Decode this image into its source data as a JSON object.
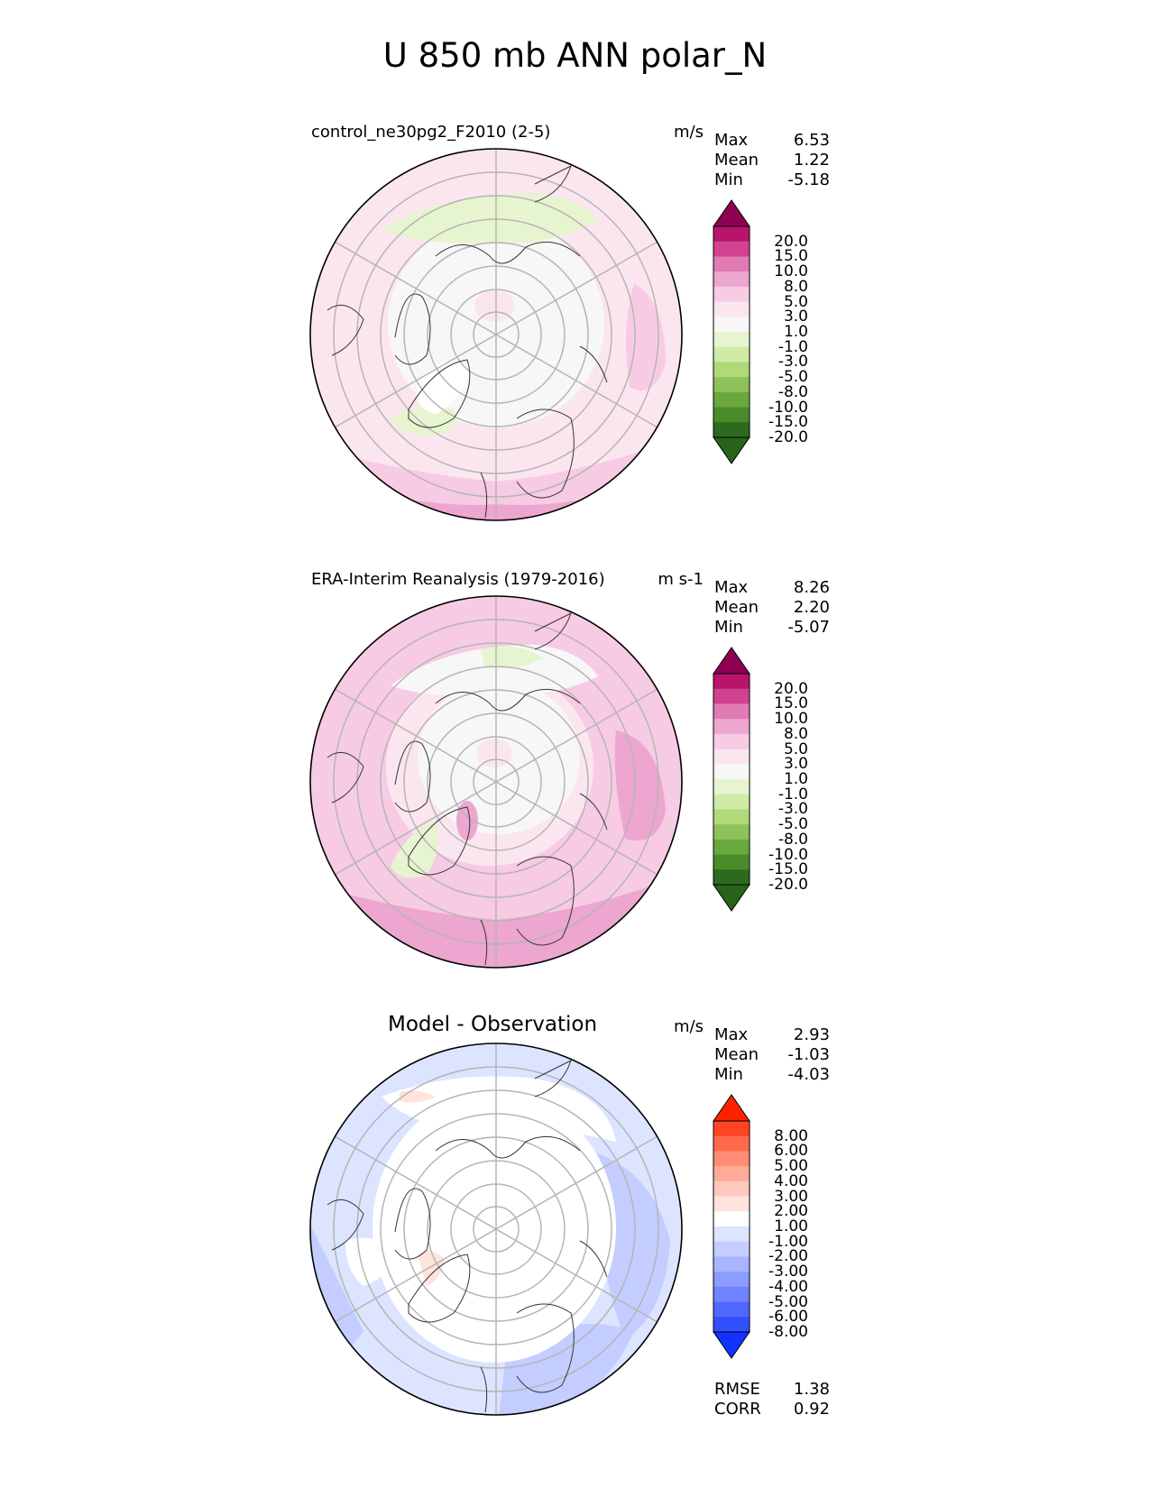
{
  "title": "U 850 mb ANN polar_N",
  "panels": [
    {
      "title": "control_ne30pg2_F2010 (2-5)",
      "units": "m/s",
      "stats": {
        "max_label": "Max",
        "max": "6.53",
        "mean_label": "Mean",
        "mean": "1.22",
        "min_label": "Min",
        "min": "-5.18"
      },
      "colorbar": {
        "ticks": [
          "20.0",
          "15.0",
          "10.0",
          "8.0",
          "5.0",
          "3.0",
          "1.0",
          "-1.0",
          "-3.0",
          "-5.0",
          "-8.0",
          "-10.0",
          "-15.0",
          "-20.0"
        ],
        "colors": [
          "#8e0152",
          "#b8146e",
          "#d1428f",
          "#e07bb3",
          "#eca6cf",
          "#f7cbe3",
          "#fbe6f0",
          "#f7f7f7",
          "#e6f5d0",
          "#cfeba6",
          "#b0d97a",
          "#8dc25a",
          "#6aa83c",
          "#4a8b2a",
          "#2c6b1e",
          "#276419"
        ]
      }
    },
    {
      "title": "ERA-Interim Reanalysis (1979-2016)",
      "units": "m s-1",
      "stats": {
        "max_label": "Max",
        "max": "8.26",
        "mean_label": "Mean",
        "mean": "2.20",
        "min_label": "Min",
        "min": "-5.07"
      },
      "colorbar": {
        "ticks": [
          "20.0",
          "15.0",
          "10.0",
          "8.0",
          "5.0",
          "3.0",
          "1.0",
          "-1.0",
          "-3.0",
          "-5.0",
          "-8.0",
          "-10.0",
          "-15.0",
          "-20.0"
        ],
        "colors": [
          "#8e0152",
          "#b8146e",
          "#d1428f",
          "#e07bb3",
          "#eca6cf",
          "#f7cbe3",
          "#fbe6f0",
          "#f7f7f7",
          "#e6f5d0",
          "#cfeba6",
          "#b0d97a",
          "#8dc25a",
          "#6aa83c",
          "#4a8b2a",
          "#2c6b1e",
          "#276419"
        ]
      }
    },
    {
      "title": "Model - Observation",
      "units": "m/s",
      "stats": {
        "max_label": "Max",
        "max": "2.93",
        "mean_label": "Mean",
        "mean": "-1.03",
        "min_label": "Min",
        "min": "-4.03"
      },
      "colorbar": {
        "ticks": [
          "8.00",
          "6.00",
          "5.00",
          "4.00",
          "3.00",
          "2.00",
          "1.00",
          "-1.00",
          "-2.00",
          "-3.00",
          "-4.00",
          "-5.00",
          "-6.00",
          "-8.00"
        ],
        "colors": [
          "#ff2200",
          "#ff4422",
          "#ff6a4a",
          "#ff8c73",
          "#ffab98",
          "#ffc8bc",
          "#ffe3dc",
          "#ffffff",
          "#dde4ff",
          "#c3cdff",
          "#a9b6ff",
          "#8c9cff",
          "#6f82ff",
          "#5068ff",
          "#3350ff",
          "#1133ff"
        ]
      }
    }
  ],
  "metrics": {
    "rmse_label": "RMSE",
    "rmse": "1.38",
    "corr_label": "CORR",
    "corr": "0.92"
  }
}
